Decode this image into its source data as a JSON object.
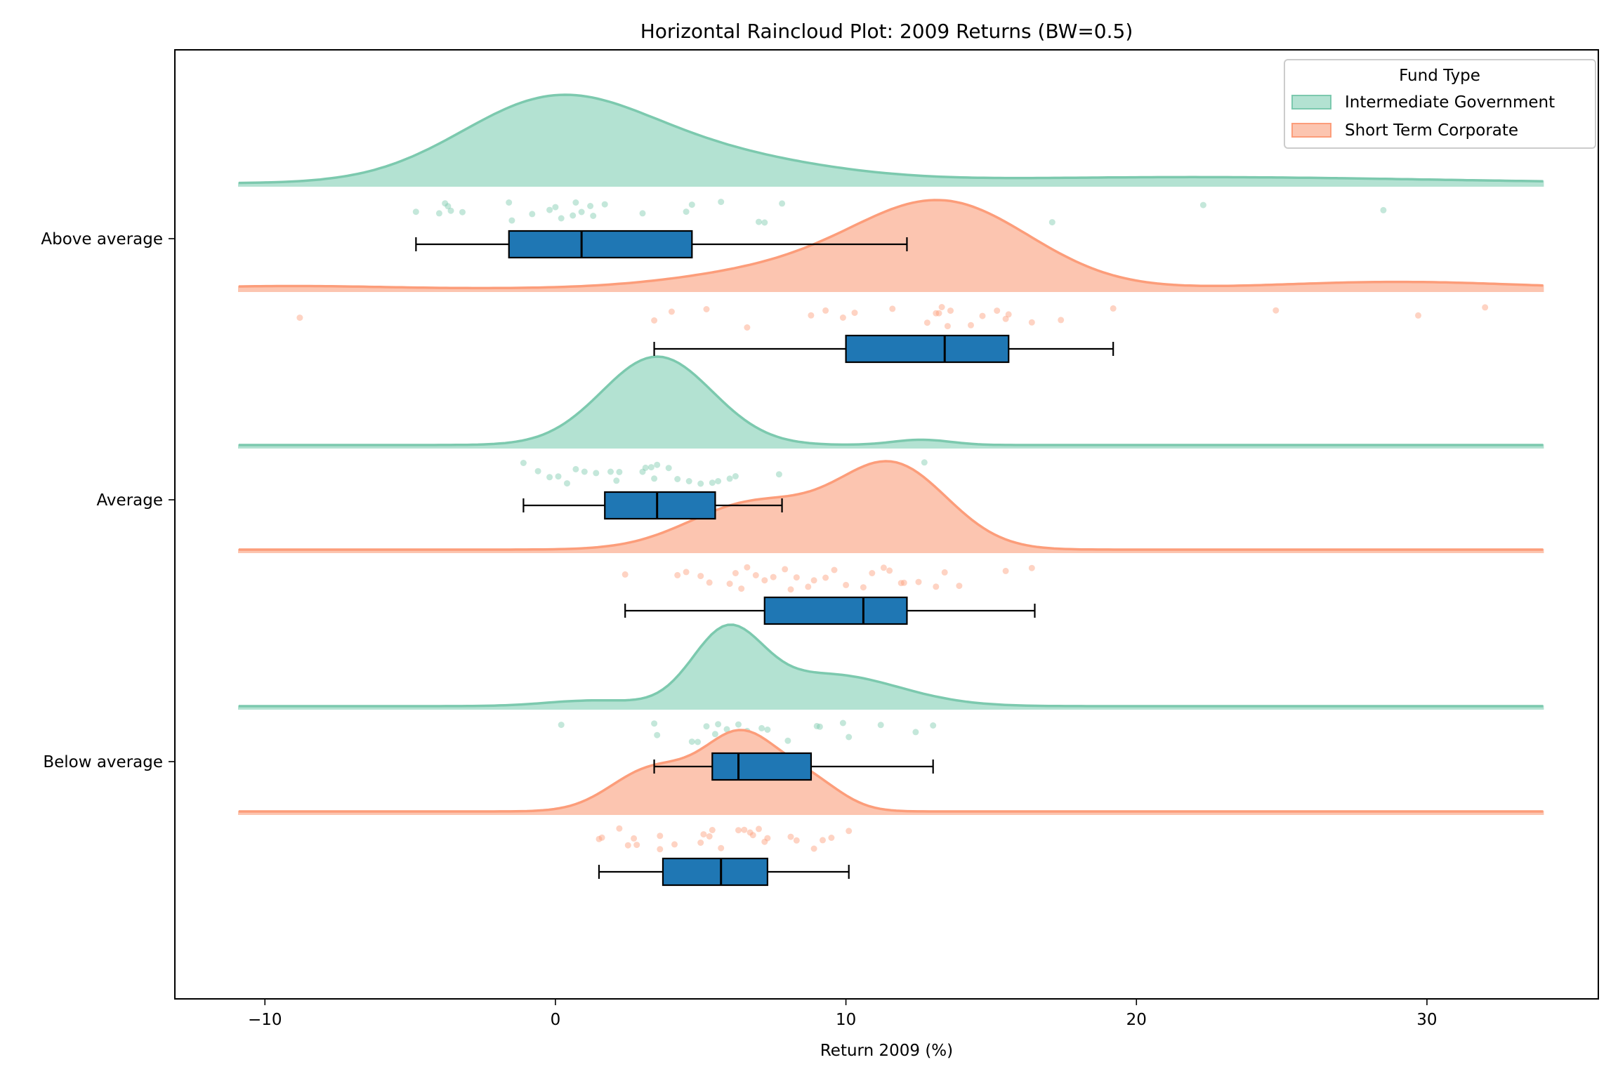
{
  "chart_data": {
    "type": "raincloud",
    "orientation": "horizontal",
    "title": "Horizontal Raincloud Plot: 2009 Returns (BW=0.5)",
    "xlabel": "Return 2009 (%)",
    "ylabel": "",
    "xlim": [
      -13.1,
      35.9
    ],
    "xticks": [
      -10,
      0,
      10,
      20,
      30
    ],
    "xtick_labels": [
      "−10",
      "0",
      "10",
      "20",
      "30"
    ],
    "categories": [
      "Above average",
      "Average",
      "Below average"
    ],
    "grid": false,
    "legend": {
      "title": "Fund Type",
      "position": "top-right",
      "entries": [
        {
          "label": "Intermediate Government",
          "fill": "#b3e2d2",
          "stroke": "#7cc9ae"
        },
        {
          "label": "Short Term Corporate",
          "fill": "#fcc5b0",
          "stroke": "#fc9d7a"
        }
      ]
    },
    "box_color": "#1f77b4",
    "kde_range": [
      -10.9,
      34
    ],
    "groups": [
      {
        "category": "Above average",
        "series": "Intermediate Government",
        "density_components": [
          [
            -0.2,
            3.2,
            1.0
          ],
          [
            5.0,
            4.0,
            0.35
          ],
          [
            22,
            8,
            0.08
          ]
        ],
        "box": {
          "whisker_low": -4.8,
          "q1": -1.6,
          "median": 0.9,
          "q3": 4.7,
          "whisker_high": 12.1
        },
        "points": [
          -4.8,
          -4.0,
          -3.8,
          -3.7,
          -3.6,
          -3.2,
          -1.6,
          -1.5,
          -0.8,
          -0.2,
          0,
          0.2,
          0.6,
          0.7,
          0.9,
          1.2,
          1.3,
          1.7,
          3.0,
          4.5,
          4.7,
          5.7,
          7.0,
          7.2,
          7.8,
          12.0,
          17.1,
          22.3,
          28.5
        ]
      },
      {
        "category": "Above average",
        "series": "Short Term Corporate",
        "density_components": [
          [
            13.4,
            3.0,
            1.0
          ],
          [
            8.0,
            3.5,
            0.22
          ],
          [
            29,
            4,
            0.08
          ],
          [
            -9,
            3,
            0.03
          ]
        ],
        "box": {
          "whisker_low": 3.4,
          "q1": 10.0,
          "median": 13.4,
          "q3": 15.6,
          "whisker_high": 19.2
        },
        "points": [
          -8.8,
          3.4,
          4.0,
          5.2,
          6.6,
          8.8,
          9.3,
          9.9,
          10.3,
          11.6,
          12.8,
          13.1,
          13.2,
          13.3,
          13.5,
          13.6,
          14.3,
          14.7,
          15.2,
          15.5,
          15.6,
          16.4,
          17.4,
          19.2,
          24.8,
          29.7,
          32.0
        ]
      },
      {
        "category": "Average",
        "series": "Intermediate Government",
        "density_components": [
          [
            3.5,
            1.9,
            1.0
          ],
          [
            12.6,
            1.0,
            0.06
          ]
        ],
        "box": {
          "whisker_low": -1.1,
          "q1": 1.7,
          "median": 3.5,
          "q3": 5.5,
          "whisker_high": 7.8
        },
        "points": [
          -1.1,
          -0.6,
          -0.2,
          0.1,
          0.4,
          0.7,
          1.0,
          1.4,
          1.9,
          2.1,
          2.2,
          3.0,
          3.1,
          3.3,
          3.4,
          3.5,
          3.9,
          4.2,
          4.6,
          5.0,
          5.4,
          5.6,
          6.0,
          6.2,
          7.7,
          12.7
        ]
      },
      {
        "category": "Average",
        "series": "Short Term Corporate",
        "density_components": [
          [
            11.6,
            1.9,
            1.0
          ],
          [
            6.8,
            2.2,
            0.55
          ]
        ],
        "box": {
          "whisker_low": 2.4,
          "q1": 7.2,
          "median": 10.6,
          "q3": 12.1,
          "whisker_high": 16.5
        },
        "points": [
          2.4,
          4.2,
          4.5,
          5.0,
          5.3,
          6.0,
          6.2,
          6.4,
          6.6,
          6.9,
          7.2,
          7.5,
          7.9,
          8.1,
          8.3,
          8.7,
          8.9,
          9.3,
          9.6,
          10.0,
          10.6,
          10.9,
          11.3,
          11.5,
          11.9,
          12.0,
          12.5,
          13.1,
          13.4,
          13.9,
          15.5,
          16.4
        ]
      },
      {
        "category": "Below average",
        "series": "Intermediate Government",
        "density_components": [
          [
            5.9,
            1.2,
            1.0
          ],
          [
            9.4,
            2.4,
            0.45
          ],
          [
            1.3,
            1.6,
            0.08
          ]
        ],
        "box": {
          "whisker_low": 3.4,
          "q1": 5.4,
          "median": 6.3,
          "q3": 8.8,
          "whisker_high": 13.0
        },
        "points": [
          0.2,
          3.4,
          3.5,
          4.7,
          4.9,
          5.2,
          5.5,
          5.6,
          5.9,
          6.1,
          6.3,
          6.6,
          7.1,
          7.3,
          8.0,
          9.0,
          9.1,
          9.9,
          10.1,
          11.2,
          12.4,
          13.0
        ]
      },
      {
        "category": "Below average",
        "series": "Short Term Corporate",
        "density_components": [
          [
            6.4,
            1.3,
            1.0
          ],
          [
            3.3,
            1.4,
            0.55
          ],
          [
            8.8,
            1.1,
            0.35
          ]
        ],
        "box": {
          "whisker_low": 1.5,
          "q1": 3.7,
          "median": 5.7,
          "q3": 7.3,
          "whisker_high": 10.1
        },
        "points": [
          1.5,
          1.6,
          2.2,
          2.5,
          2.7,
          2.8,
          3.6,
          3.6,
          4.1,
          5.0,
          5.1,
          5.3,
          5.4,
          5.7,
          6.3,
          6.5,
          6.7,
          6.8,
          7.0,
          7.2,
          7.3,
          8.1,
          8.3,
          8.9,
          9.2,
          9.5,
          10.1
        ]
      }
    ]
  }
}
